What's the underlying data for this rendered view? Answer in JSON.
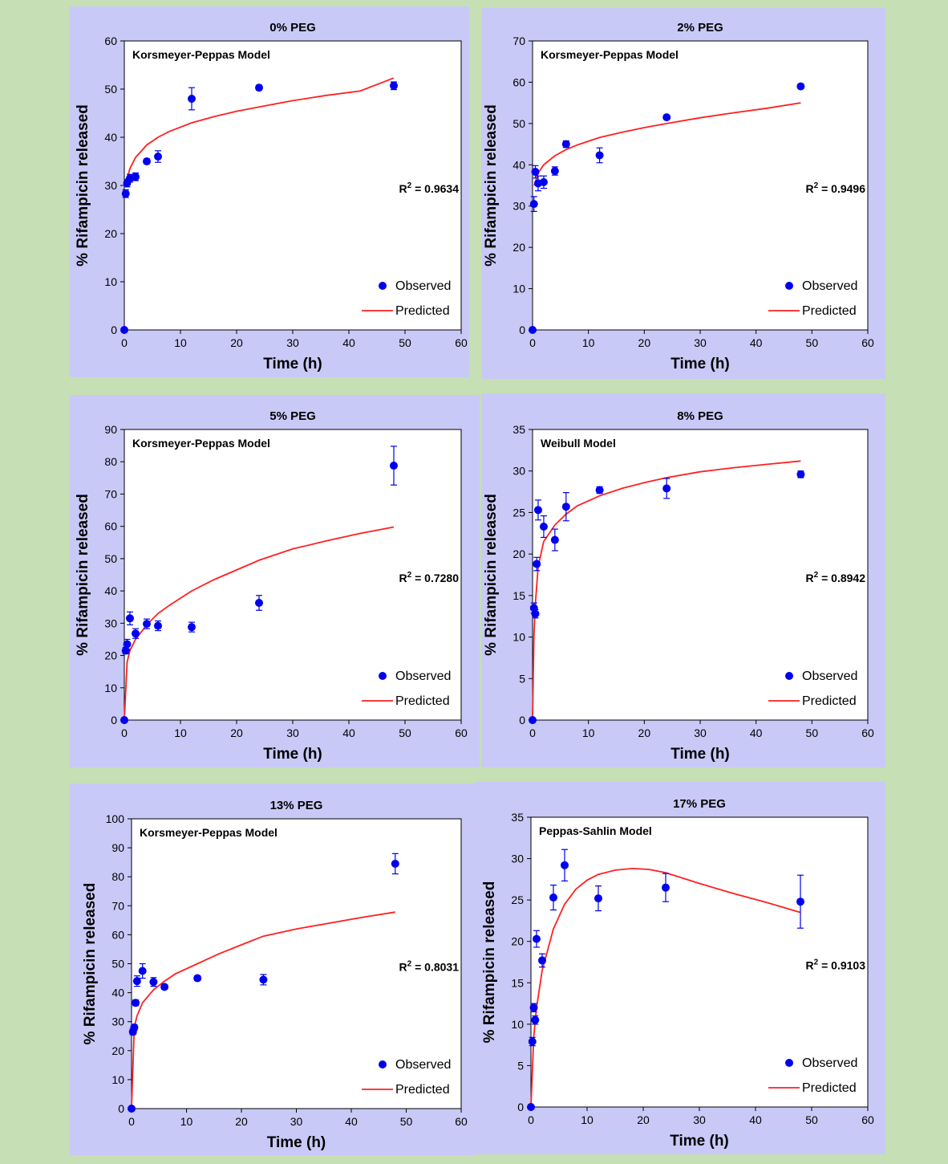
{
  "colors": {
    "observed": "#0000ee",
    "predicted": "#ff2020"
  },
  "chart_data": [
    {
      "type": "scatter",
      "title": "0% PEG",
      "model": "Korsmeyer-Peppas Model",
      "r2_prefix": "R",
      "r2_sup": "2",
      "r2_value": "= 0.9634",
      "xlabel": "Time (h)",
      "ylabel": "% Rifampicin released",
      "xlim": [
        0,
        60
      ],
      "ylim": [
        0,
        60
      ],
      "xticks": [
        0,
        10,
        20,
        30,
        40,
        50,
        60
      ],
      "yticks": [
        0,
        10,
        20,
        30,
        40,
        50,
        60
      ],
      "legend": [
        "Observed",
        "Predicted"
      ],
      "legend_position": "bottom-right",
      "observed": {
        "x": [
          0,
          0.25,
          0.5,
          1,
          2,
          4,
          6,
          12,
          24,
          48
        ],
        "y": [
          0,
          28.3,
          30.5,
          31.5,
          31.8,
          35.0,
          36.0,
          48.0,
          50.3,
          50.7
        ],
        "err": [
          0,
          0.8,
          0.8,
          0.8,
          0.8,
          0.5,
          1.2,
          2.3,
          0.5,
          0.8
        ]
      },
      "predicted": {
        "x": [
          0.4,
          1,
          2,
          4,
          6,
          8,
          12,
          16,
          20,
          24,
          30,
          36,
          42,
          48
        ],
        "y": [
          31.0,
          33.5,
          35.8,
          38.4,
          40.0,
          41.2,
          43.0,
          44.3,
          45.4,
          46.3,
          47.6,
          48.7,
          49.6,
          52.3
        ]
      }
    },
    {
      "type": "scatter",
      "title": "2% PEG",
      "model": "Korsmeyer-Peppas Model",
      "r2_prefix": "R",
      "r2_sup": "2",
      "r2_value": "= 0.9496",
      "xlabel": "Time (h)",
      "ylabel": "% Rifampicin released",
      "xlim": [
        0,
        60
      ],
      "ylim": [
        0,
        70
      ],
      "xticks": [
        0,
        10,
        20,
        30,
        40,
        50,
        60
      ],
      "yticks": [
        0,
        10,
        20,
        30,
        40,
        50,
        60,
        70
      ],
      "legend": [
        "Observed",
        "Predicted"
      ],
      "legend_position": "bottom-right",
      "observed": {
        "x": [
          0,
          0.25,
          0.5,
          1,
          2,
          4,
          6,
          12,
          24,
          48
        ],
        "y": [
          0,
          30.5,
          38.3,
          35.5,
          35.8,
          38.5,
          45.0,
          42.3,
          51.5,
          59.0
        ],
        "err": [
          0,
          1.8,
          1.5,
          1.8,
          1.5,
          1.0,
          0.8,
          1.8,
          0.5,
          0.5
        ]
      },
      "predicted": {
        "x": [
          0.3,
          1,
          2,
          4,
          6,
          8,
          12,
          16,
          20,
          24,
          30,
          36,
          42,
          48
        ],
        "y": [
          35.0,
          38.0,
          40.0,
          42.2,
          43.7,
          44.8,
          46.6,
          47.9,
          49.0,
          50.0,
          51.4,
          52.6,
          53.7,
          55.0
        ]
      }
    },
    {
      "type": "scatter",
      "title": "5% PEG",
      "model": "Korsmeyer-Peppas Model",
      "r2_prefix": "R",
      "r2_sup": "2",
      "r2_value": "= 0.7280",
      "xlabel": "Time (h)",
      "ylabel": "% Rifampicin released",
      "xlim": [
        0,
        60
      ],
      "ylim": [
        0,
        90
      ],
      "xticks": [
        0,
        10,
        20,
        30,
        40,
        50,
        60
      ],
      "yticks": [
        0,
        10,
        20,
        30,
        40,
        50,
        60,
        70,
        80,
        90
      ],
      "legend": [
        "Observed",
        "Predicted"
      ],
      "legend_position": "bottom-right",
      "observed": {
        "x": [
          0,
          0.25,
          0.5,
          1,
          2,
          4,
          6,
          12,
          24,
          48
        ],
        "y": [
          0,
          21.5,
          23.5,
          31.5,
          26.8,
          29.8,
          29.2,
          28.8,
          36.3,
          78.8
        ],
        "err": [
          0,
          1.0,
          1.5,
          2.0,
          1.5,
          1.5,
          1.5,
          1.5,
          2.3,
          6.0
        ]
      },
      "predicted": {
        "x": [
          0,
          0.5,
          1,
          2,
          4,
          6,
          8,
          12,
          16,
          20,
          24,
          30,
          36,
          42,
          48
        ],
        "y": [
          0,
          18.0,
          21.5,
          25.0,
          29.5,
          33.0,
          35.5,
          40.0,
          43.5,
          46.5,
          49.5,
          53.0,
          55.5,
          57.8,
          59.8
        ]
      }
    },
    {
      "type": "scatter",
      "title": "8% PEG",
      "model": "Weibull Model",
      "r2_prefix": "R",
      "r2_sup": "2",
      "r2_value": "= 0.8942",
      "xlabel": "Time (h)",
      "ylabel": "% Rifampicin released",
      "xlim": [
        0,
        60
      ],
      "ylim": [
        0,
        35
      ],
      "xticks": [
        0,
        10,
        20,
        30,
        40,
        50,
        60
      ],
      "yticks": [
        0,
        5,
        10,
        15,
        20,
        25,
        30,
        35
      ],
      "legend": [
        "Observed",
        "Predicted"
      ],
      "legend_position": "bottom-right",
      "observed": {
        "x": [
          0,
          0.25,
          0.5,
          0.75,
          1,
          2,
          4,
          6,
          12,
          24,
          48
        ],
        "y": [
          0,
          13.5,
          12.8,
          18.8,
          25.3,
          23.3,
          21.7,
          25.7,
          27.7,
          27.9,
          29.6
        ],
        "err": [
          0,
          0.6,
          0.5,
          0.8,
          1.2,
          1.3,
          1.3,
          1.7,
          0.4,
          1.2,
          0.4
        ]
      },
      "predicted": {
        "x": [
          0,
          0.25,
          0.5,
          1,
          2,
          4,
          6,
          8,
          12,
          16,
          20,
          24,
          30,
          36,
          42,
          48
        ],
        "y": [
          0,
          10.0,
          14.0,
          18.5,
          21.5,
          23.5,
          24.8,
          25.8,
          27.0,
          27.9,
          28.6,
          29.2,
          29.9,
          30.4,
          30.8,
          31.2
        ]
      }
    },
    {
      "type": "scatter",
      "title": "13% PEG",
      "model": "Korsmeyer-Peppas Model",
      "r2_prefix": "R",
      "r2_sup": "2",
      "r2_value": "= 0.8031",
      "xlabel": "Time (h)",
      "ylabel": "% Rifampicin released",
      "xlim": [
        0,
        60
      ],
      "ylim": [
        0,
        100
      ],
      "xticks": [
        0,
        10,
        20,
        30,
        40,
        50,
        60
      ],
      "yticks": [
        0,
        10,
        20,
        30,
        40,
        50,
        60,
        70,
        80,
        90,
        100
      ],
      "legend": [
        "Observed",
        "Predicted"
      ],
      "legend_position": "bottom-right",
      "observed": {
        "x": [
          0,
          0.25,
          0.5,
          0.75,
          1,
          2,
          4,
          6,
          12,
          24,
          48
        ],
        "y": [
          0,
          26.5,
          28.0,
          36.5,
          44.0,
          47.5,
          43.7,
          42.0,
          45.0,
          44.5,
          84.5
        ],
        "err": [
          0,
          1.0,
          1.0,
          1.0,
          1.8,
          2.5,
          1.5,
          0.8,
          0.8,
          1.8,
          3.5
        ]
      },
      "predicted": {
        "x": [
          0,
          0.5,
          1,
          2,
          4,
          6,
          8,
          12,
          16,
          20,
          24,
          30,
          36,
          42,
          48
        ],
        "y": [
          0,
          28.0,
          32.0,
          36.5,
          41.0,
          44.0,
          46.5,
          50.0,
          53.5,
          56.5,
          59.5,
          62.0,
          64.0,
          66.0,
          67.8
        ]
      }
    },
    {
      "type": "scatter",
      "title": "17% PEG",
      "model": "Peppas-Sahlin Model",
      "r2_prefix": "R",
      "r2_sup": "2",
      "r2_value": "= 0.9103",
      "xlabel": "Time (h)",
      "ylabel": "% Rifampicin released",
      "xlim": [
        0,
        60
      ],
      "ylim": [
        0,
        35
      ],
      "xticks": [
        0,
        10,
        20,
        30,
        40,
        50,
        60
      ],
      "yticks": [
        0,
        5,
        10,
        15,
        20,
        25,
        30,
        35
      ],
      "legend": [
        "Observed",
        "Predicted"
      ],
      "legend_position": "bottom-right",
      "observed": {
        "x": [
          0,
          0.25,
          0.5,
          0.75,
          1,
          2,
          4,
          6,
          12,
          24,
          48
        ],
        "y": [
          0,
          7.9,
          12.0,
          10.5,
          20.3,
          17.7,
          25.3,
          29.2,
          25.2,
          26.5,
          24.8
        ],
        "err": [
          0,
          0.5,
          0.5,
          0.5,
          1.0,
          0.8,
          1.5,
          1.9,
          1.5,
          1.7,
          3.2
        ]
      },
      "predicted": {
        "x": [
          0,
          0.5,
          1,
          2,
          4,
          6,
          8,
          10,
          12,
          15,
          18,
          21,
          24,
          30,
          36,
          42,
          48
        ],
        "y": [
          0,
          8.5,
          12.0,
          16.5,
          21.5,
          24.5,
          26.3,
          27.4,
          28.1,
          28.6,
          28.8,
          28.7,
          28.3,
          27.0,
          25.8,
          24.7,
          23.5
        ]
      }
    }
  ]
}
